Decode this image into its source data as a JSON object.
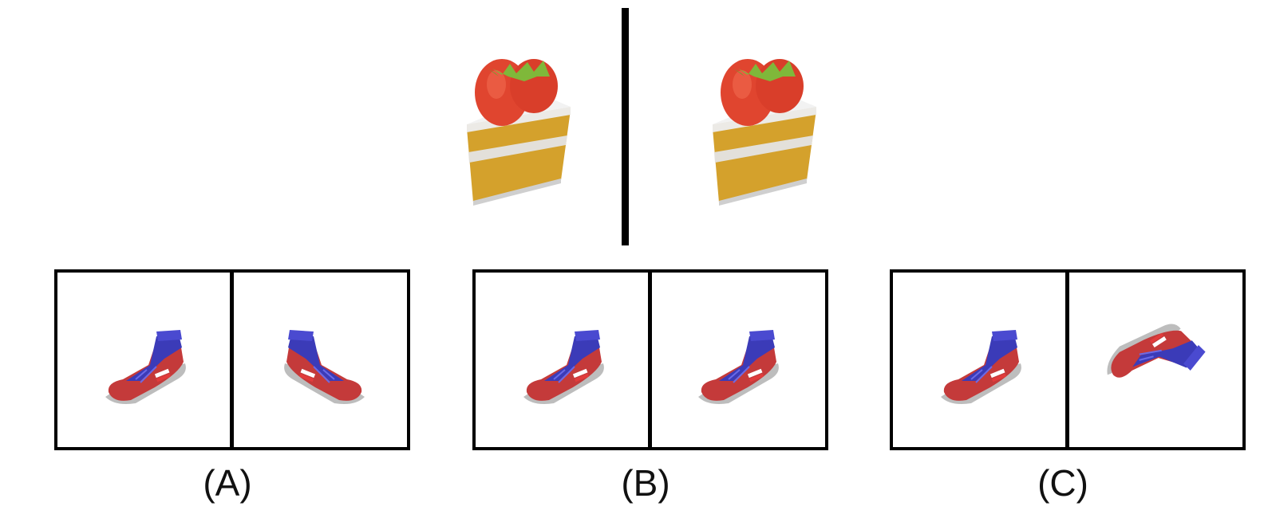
{
  "reference": {
    "left_object_icon": "strawberry-cake-slice",
    "right_object_icon": "strawberry-cake-slice"
  },
  "options": [
    {
      "label": "(A)",
      "left_icon": "sneaker",
      "right_icon": "sneaker-mirrored"
    },
    {
      "label": "(B)",
      "left_icon": "sneaker",
      "right_icon": "sneaker"
    },
    {
      "label": "(C)",
      "left_icon": "sneaker",
      "right_icon": "sneaker-rotated"
    }
  ],
  "colors": {
    "frame": "#000000",
    "cake_sponge": "#D4A12C",
    "cake_cream": "#E6E6E6",
    "strawberry": "#E0452F",
    "shoe_body": "#C43A3A",
    "shoe_upper": "#3B3BB8"
  }
}
